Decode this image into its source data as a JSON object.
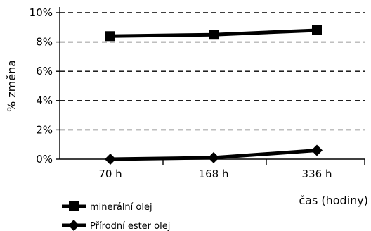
{
  "chart_data": {
    "type": "line",
    "categories": [
      "70 h",
      "168 h",
      "336 h"
    ],
    "y_ticks": [
      "0%",
      "2%",
      "4%",
      "6%",
      "8%",
      "10%"
    ],
    "ylim": [
      0,
      10
    ],
    "ylabel": "% změna",
    "xlabel": "čas (hodiny)",
    "grid": "horizontal dashed",
    "legend_position": "bottom-left",
    "series": [
      {
        "name": "minerální olej",
        "marker": "square",
        "color": "#000000",
        "values": [
          8.4,
          8.5,
          8.8
        ]
      },
      {
        "name": "Přírodní ester olej",
        "marker": "diamond",
        "color": "#000000",
        "values": [
          0.0,
          0.1,
          0.6
        ]
      }
    ]
  }
}
